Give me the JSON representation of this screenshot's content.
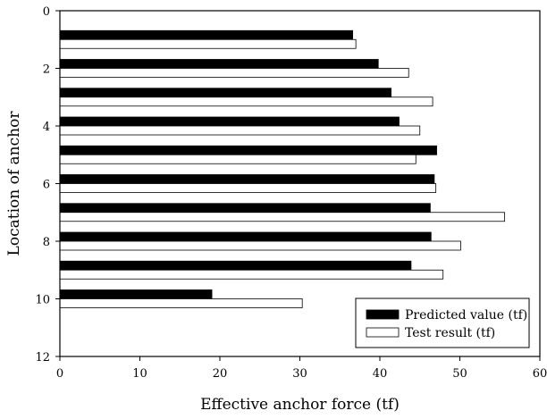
{
  "chart_data": {
    "type": "bar",
    "orientation": "horizontal",
    "title": "",
    "xlabel": "Effective anchor force (tf)",
    "ylabel": "Location of anchor",
    "xlim": [
      0,
      60
    ],
    "ylim": [
      0,
      12
    ],
    "y_inverted": true,
    "xticks": [
      0,
      10,
      20,
      30,
      40,
      50,
      60
    ],
    "yticks": [
      0,
      2,
      4,
      6,
      8,
      10,
      12
    ],
    "categories": [
      1,
      2,
      3,
      4,
      5,
      6,
      7,
      8,
      9,
      10
    ],
    "series": [
      {
        "name": "Predicted value (tf)",
        "color": "#000000",
        "fill": "solid",
        "values": [
          36.6,
          39.8,
          41.4,
          42.4,
          47.1,
          46.8,
          46.3,
          46.4,
          43.9,
          19.0
        ]
      },
      {
        "name": "Test result (tf)",
        "color": "#ffffff",
        "fill": "outline",
        "values": [
          37.0,
          43.6,
          46.6,
          45.0,
          44.5,
          47.0,
          55.6,
          50.1,
          47.9,
          30.3
        ]
      }
    ],
    "grid": false,
    "legend_position": "bottom-right"
  }
}
